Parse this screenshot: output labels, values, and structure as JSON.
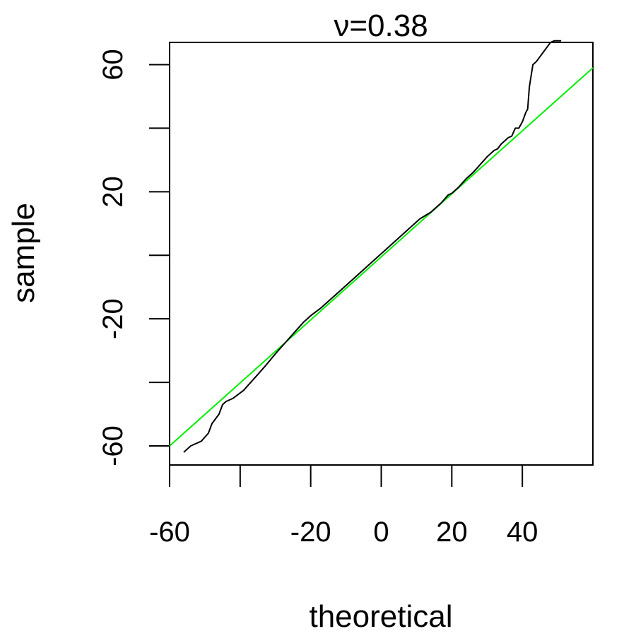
{
  "chart_data": {
    "type": "line",
    "title": "ν=0.38",
    "xlabel": "theoretical",
    "ylabel": "sample",
    "xlim": [
      -60,
      60
    ],
    "ylim": [
      -66,
      67
    ],
    "x_ticks": [
      -60,
      -40,
      -20,
      0,
      20,
      40
    ],
    "x_tick_labels": [
      "-60",
      "",
      "-20",
      "0",
      "20",
      "40"
    ],
    "y_ticks": [
      -60,
      -40,
      -20,
      0,
      20,
      40,
      60
    ],
    "y_tick_labels": [
      "-60",
      "",
      "-20",
      "",
      "20",
      "",
      "60"
    ],
    "grid": false,
    "legend": "none",
    "colors": {
      "sample": "#000000",
      "reference": "#00ee00",
      "axes": "#000000"
    },
    "series": [
      {
        "x": [
          -56,
          -54,
          -51,
          -49,
          -48,
          -46,
          -45,
          -44,
          -42,
          -39,
          -37,
          -35,
          -33,
          -30,
          -28,
          -26,
          -24,
          -22,
          -20,
          -17,
          -15,
          -12,
          -10,
          -7,
          -5,
          -2,
          0,
          2,
          5,
          8,
          11,
          14,
          17,
          19,
          20,
          22,
          24,
          26,
          28,
          30,
          32,
          33,
          34,
          35,
          36,
          37,
          38,
          39,
          40,
          41,
          41.5,
          42,
          43,
          44,
          45,
          46,
          47,
          48,
          49,
          50,
          51
        ],
        "values": [
          -62,
          -60,
          -58.5,
          -56,
          -53,
          -50,
          -47,
          -46,
          -45,
          -42.5,
          -40,
          -37.5,
          -35,
          -31,
          -28.5,
          -26,
          -23.5,
          -21,
          -19,
          -16.5,
          -14.5,
          -11.5,
          -9.5,
          -6.5,
          -4.5,
          -1.5,
          0.5,
          2.5,
          5.5,
          8.5,
          11.5,
          13.5,
          16.5,
          19,
          19.5,
          21.5,
          24,
          26,
          28.5,
          31,
          33,
          33.5,
          35,
          36,
          37,
          37.5,
          40,
          40,
          42,
          45,
          46,
          53,
          60,
          61,
          62.5,
          64,
          65.5,
          67,
          67.5,
          67.5,
          67.5
        ]
      },
      {
        "x": [
          -60,
          60
        ],
        "values": [
          -60,
          59
        ]
      }
    ]
  }
}
